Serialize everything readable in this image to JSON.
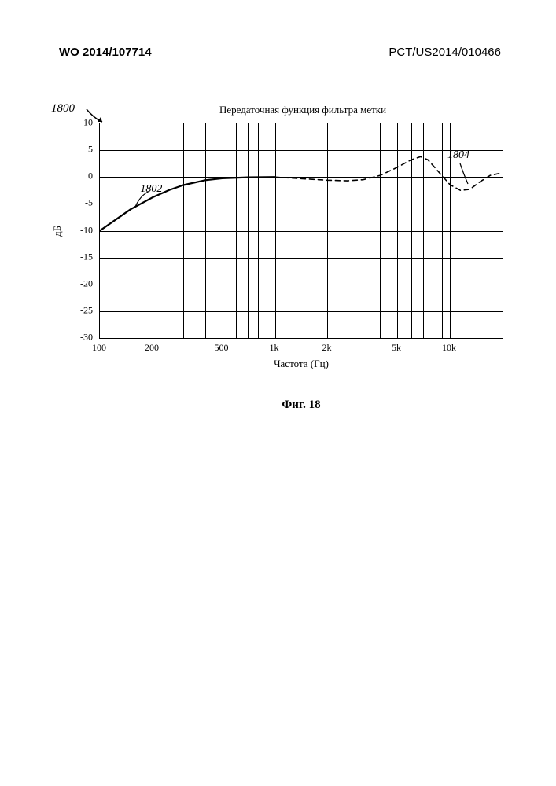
{
  "header": {
    "left": "WO 2014/107714",
    "right": "PCT/US2014/010466"
  },
  "figure": {
    "ref_label": "1800",
    "chart": {
      "type": "line",
      "title": "Передаточная функция фильтра метки",
      "xlabel": "Частота (Гц)",
      "ylabel": "дБ",
      "x_log_range": [
        100,
        20000
      ],
      "ylim": [
        -30,
        10
      ],
      "ytick_step": 5,
      "yticks": [
        10,
        5,
        0,
        -5,
        -10,
        -15,
        -20,
        -25,
        -30
      ],
      "xticks": [
        {
          "value": 100,
          "label": "100"
        },
        {
          "value": 200,
          "label": "200"
        },
        {
          "value": 500,
          "label": "500"
        },
        {
          "value": 1000,
          "label": "1k"
        },
        {
          "value": 2000,
          "label": "2k"
        },
        {
          "value": 5000,
          "label": "5k"
        },
        {
          "value": 10000,
          "label": "10k"
        }
      ],
      "log_gridlines": [
        100,
        200,
        300,
        400,
        500,
        600,
        700,
        800,
        900,
        1000,
        2000,
        3000,
        4000,
        5000,
        6000,
        7000,
        8000,
        9000,
        10000,
        20000
      ],
      "series_solid": {
        "label": "1802",
        "color": "#000000",
        "line_width": 2.2,
        "dash": "none",
        "points": [
          [
            100,
            -10.0
          ],
          [
            120,
            -8.2
          ],
          [
            150,
            -6.0
          ],
          [
            200,
            -3.8
          ],
          [
            250,
            -2.4
          ],
          [
            300,
            -1.5
          ],
          [
            400,
            -0.6
          ],
          [
            500,
            -0.25
          ],
          [
            700,
            -0.05
          ],
          [
            1000,
            0.0
          ]
        ]
      },
      "series_dashed": {
        "label": "1804",
        "color": "#000000",
        "line_width": 1.6,
        "dash": "6,5",
        "points": [
          [
            1000,
            0.0
          ],
          [
            1400,
            -0.3
          ],
          [
            2000,
            -0.6
          ],
          [
            2600,
            -0.7
          ],
          [
            3200,
            -0.5
          ],
          [
            4000,
            0.3
          ],
          [
            5000,
            1.8
          ],
          [
            6000,
            3.2
          ],
          [
            6800,
            3.8
          ],
          [
            7500,
            3.2
          ],
          [
            8500,
            1.2
          ],
          [
            10000,
            -1.4
          ],
          [
            11500,
            -2.5
          ],
          [
            13000,
            -2.3
          ],
          [
            15000,
            -0.8
          ],
          [
            17000,
            0.3
          ],
          [
            20000,
            0.8
          ]
        ]
      },
      "callouts": {
        "solid": "1802",
        "dashed": "1804"
      },
      "background_color": "#ffffff",
      "grid_color": "#000000",
      "axis_fontsize": 12,
      "label_fontsize": 13,
      "title_fontsize": 13
    },
    "caption": "Фиг. 18"
  }
}
